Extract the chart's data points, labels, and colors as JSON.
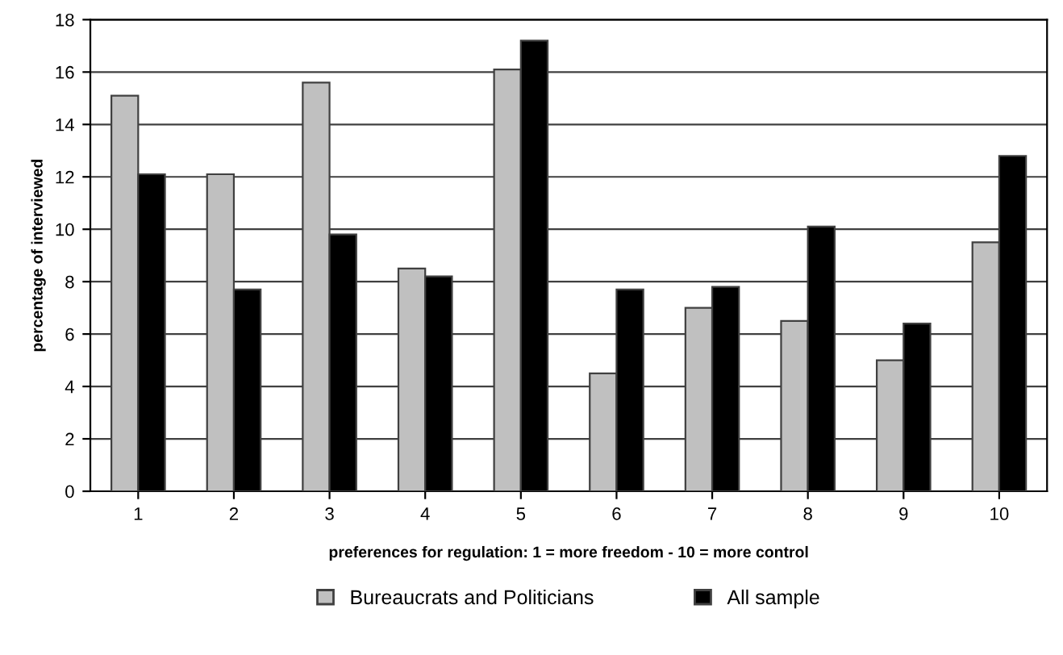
{
  "chart_data": {
    "type": "bar",
    "xlabel": "preferences for regulation: 1 = more freedom - 10 = more control",
    "ylabel": "percentage of interviewed",
    "categories": [
      "1",
      "2",
      "3",
      "4",
      "5",
      "6",
      "7",
      "8",
      "9",
      "10"
    ],
    "series": [
      {
        "name": "Bureaucrats and Politicians",
        "color": "#c0c0c0",
        "values": [
          15.1,
          12.1,
          15.6,
          8.5,
          16.1,
          4.5,
          7.0,
          6.5,
          5.0,
          9.5
        ]
      },
      {
        "name": "All sample",
        "color": "#000000",
        "values": [
          12.1,
          7.7,
          9.8,
          8.2,
          17.2,
          7.7,
          7.8,
          10.1,
          6.4,
          12.8
        ]
      }
    ],
    "ylim": [
      0,
      18
    ],
    "yticks": [
      0,
      2,
      4,
      6,
      8,
      10,
      12,
      14,
      16,
      18
    ],
    "grid": "y",
    "legend": "bottom"
  }
}
